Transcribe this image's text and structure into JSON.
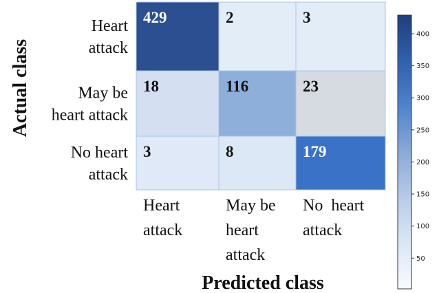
{
  "chart_data": {
    "type": "heatmap",
    "xlabel": "Predicted class",
    "ylabel": "Actual class",
    "row_labels": [
      [
        "Heart",
        "attack"
      ],
      [
        "May be",
        "heart attack"
      ],
      [
        "No heart",
        "attack"
      ]
    ],
    "col_labels": [
      [
        "Heart",
        "attack"
      ],
      [
        "May be",
        "heart",
        "attack"
      ],
      [
        "No  heart",
        "attack"
      ]
    ],
    "values": [
      [
        429,
        2,
        3
      ],
      [
        18,
        116,
        23
      ],
      [
        3,
        8,
        179
      ]
    ],
    "colors": [
      [
        "#2c4f92",
        "#e3edf8",
        "#e3edf8"
      ],
      [
        "#d4e0f2",
        "#8fafdb",
        "#d6dbe1"
      ],
      [
        "#dfe9f7",
        "#dde8f6",
        "#3a72c7"
      ]
    ],
    "clim": [
      2,
      429
    ],
    "colorbar_ticks": [
      50,
      100,
      150,
      200,
      250,
      300,
      350,
      400
    ],
    "colorbar_colors": [
      "#f7fbff",
      "#dce7f5",
      "#b7cbe9",
      "#8aa9d8",
      "#4f83cc",
      "#2f61ad",
      "#1f3e7d"
    ]
  }
}
